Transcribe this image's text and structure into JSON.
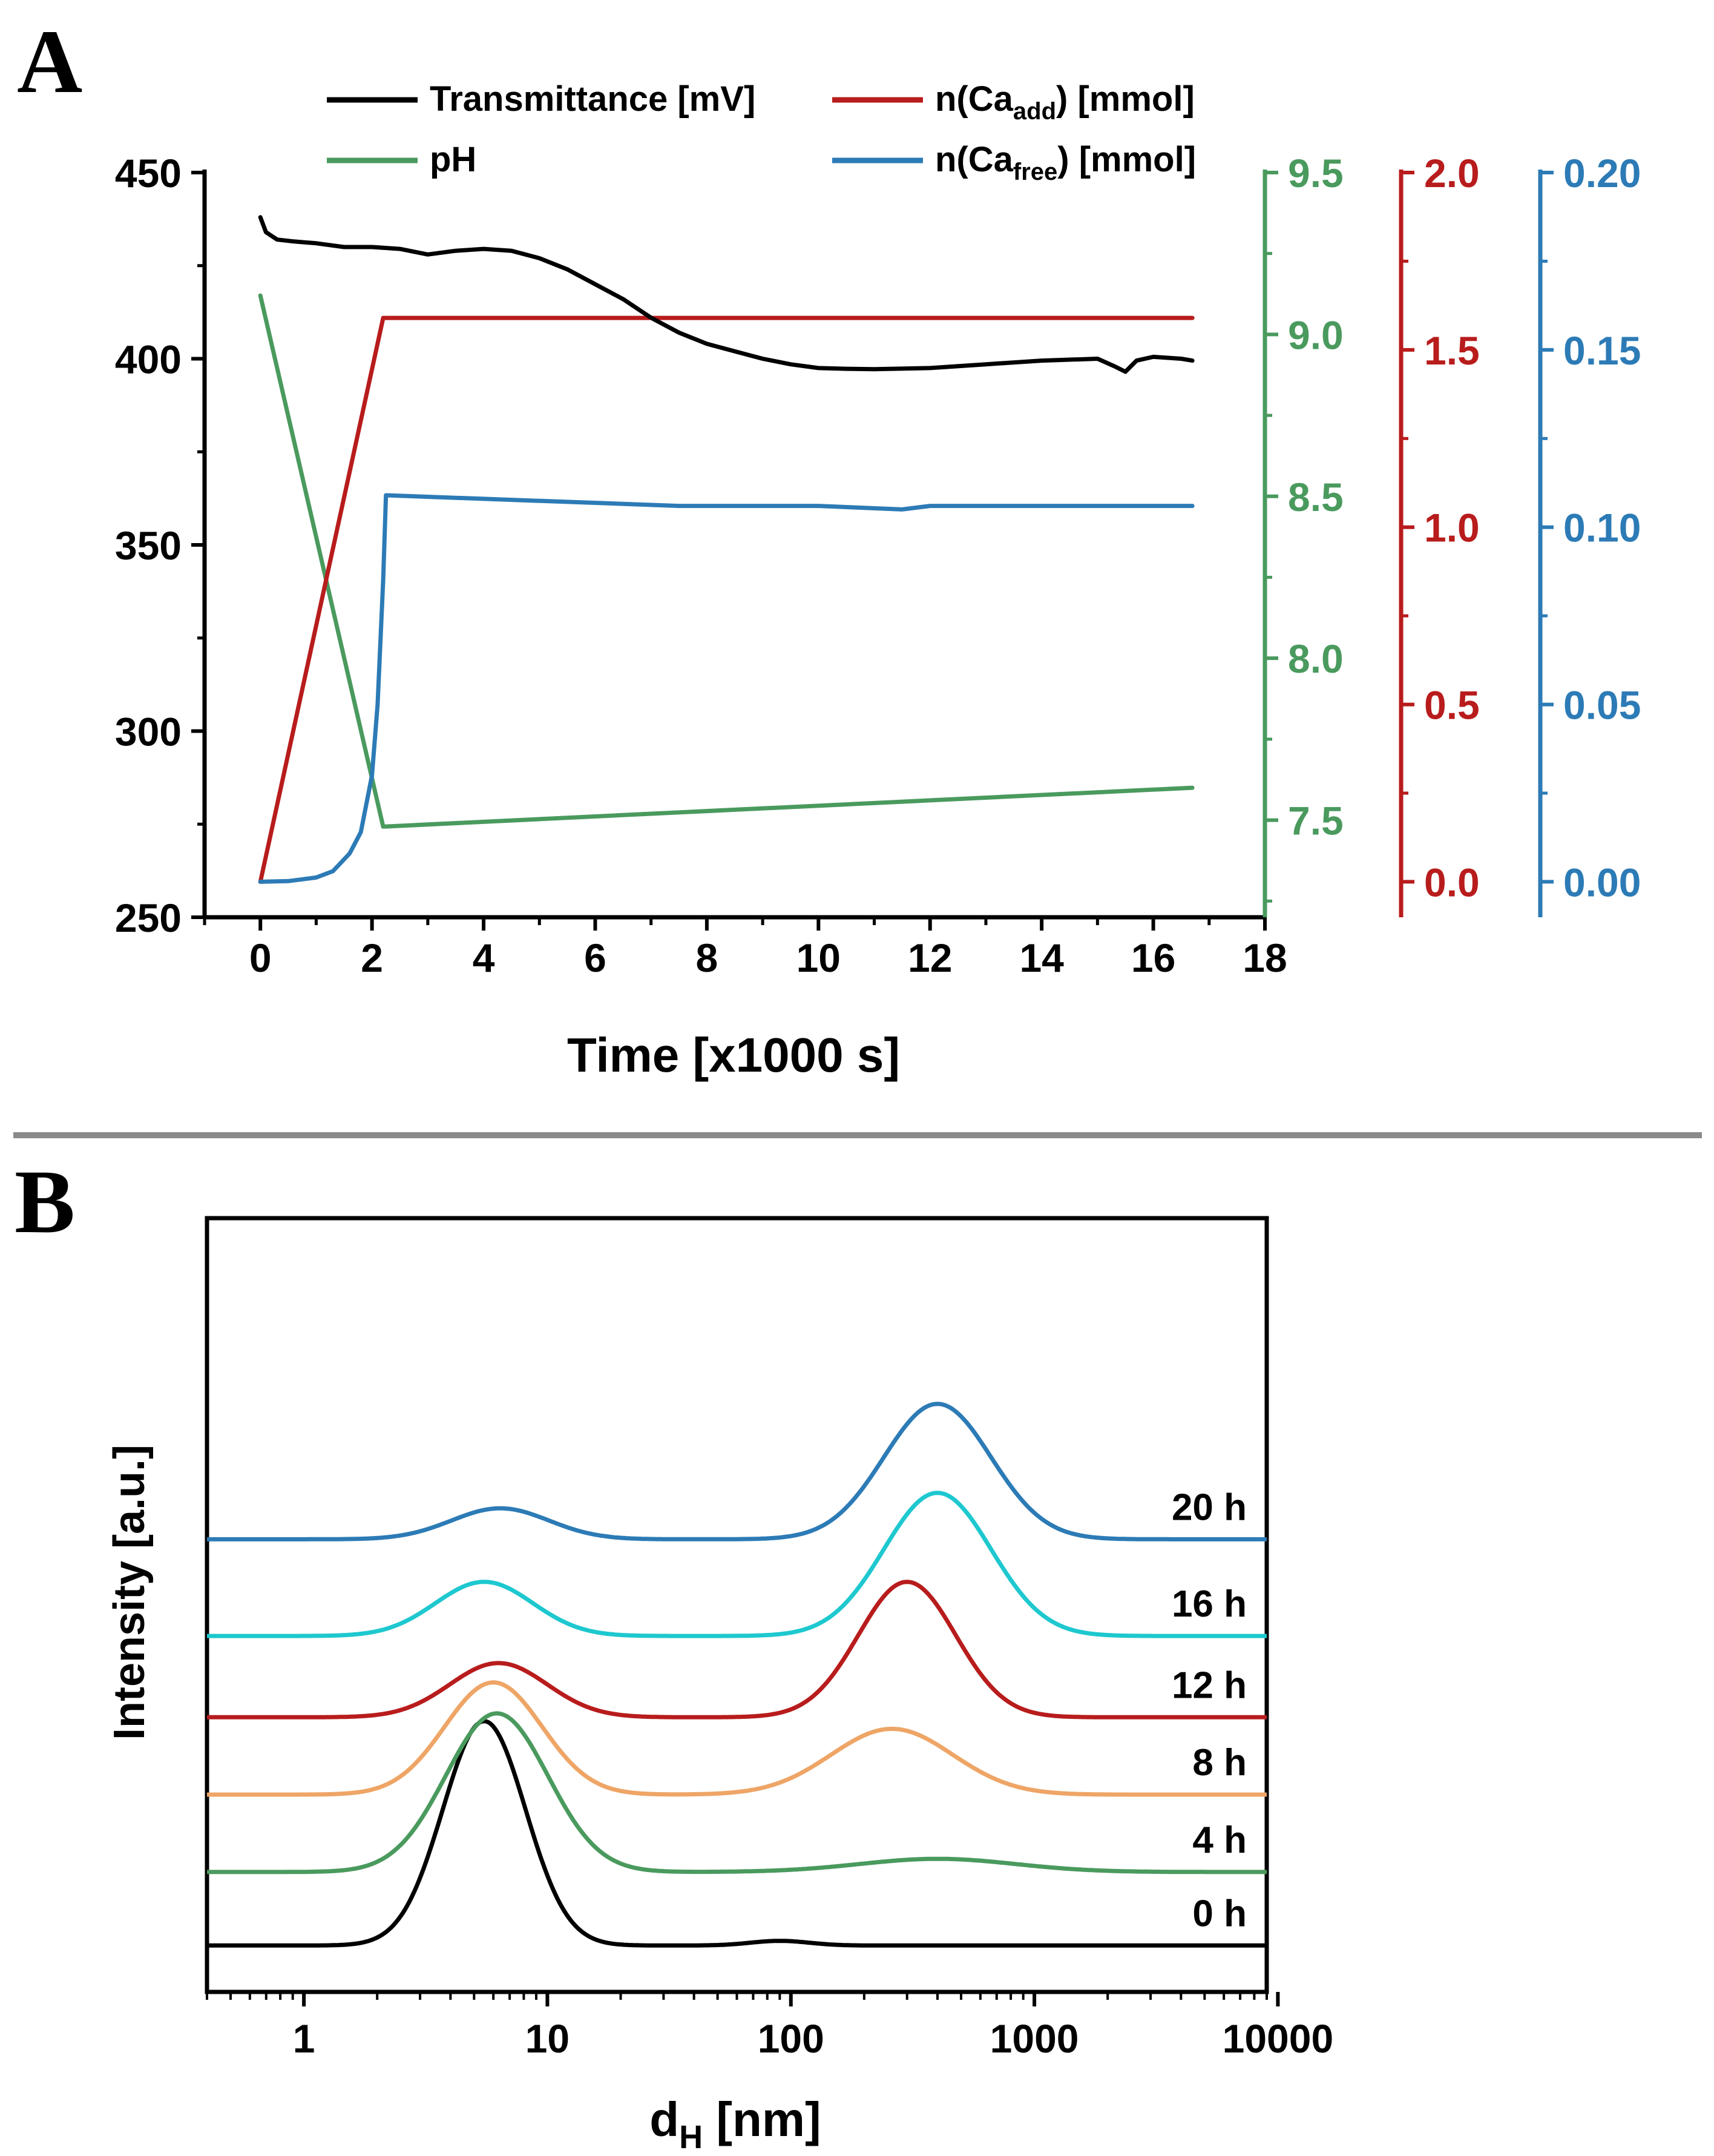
{
  "figure": {
    "panel_a_label": "A",
    "panel_b_label": "B"
  },
  "colors": {
    "transmittance": "#000000",
    "ph": "#4a9a5e",
    "ca_add": "#b81c1c",
    "ca_free": "#2c7bb6",
    "cyan": "#1ec8cf",
    "orange": "#eea566",
    "separator": "#8a8a8a"
  },
  "chart_data": [
    {
      "type": "line",
      "title": "",
      "xlabel": "Time [x1000 s]",
      "xlim": [
        -1,
        18
      ],
      "xticks": [
        "0",
        "2",
        "4",
        "6",
        "8",
        "10",
        "12",
        "14",
        "16",
        "18"
      ],
      "legend": {
        "placement": "top",
        "entries": [
          {
            "key": "transmittance",
            "text": "Transmittance [mV]"
          },
          {
            "key": "ca_add",
            "prefix": "n(Ca",
            "sub": "add",
            "suffix": ") [mmol]"
          },
          {
            "key": "ph",
            "text": "pH"
          },
          {
            "key": "ca_free",
            "prefix": "n(Ca",
            "sub": "free",
            "suffix": ") [mmol]"
          }
        ]
      },
      "axes": {
        "left": {
          "name": "Transmittance [mV]",
          "ylim": [
            250,
            450
          ],
          "ticks": [
            "250",
            "300",
            "350",
            "400",
            "450"
          ]
        },
        "ph": {
          "name": "pH",
          "ylim": [
            7.2,
            9.5
          ],
          "ticks": [
            "7.5",
            "8.0",
            "8.5",
            "9.0",
            "9.5"
          ]
        },
        "ca_add": {
          "name": "n(Ca_add) [mmol]",
          "ylim": [
            -0.1,
            2.0
          ],
          "ticks": [
            "0.0",
            "0.5",
            "1.0",
            "1.5",
            "2.0"
          ]
        },
        "ca_free": {
          "name": "n(Ca_free) [mmol]",
          "ylim": [
            -0.01,
            0.2
          ],
          "ticks": [
            "0.00",
            "0.05",
            "0.10",
            "0.15",
            "0.20"
          ]
        }
      },
      "series": [
        {
          "name": "Transmittance [mV]",
          "axis": "left",
          "color_key": "transmittance",
          "x": [
            0,
            0.1,
            0.3,
            0.6,
            1.0,
            1.5,
            2.0,
            2.5,
            3.0,
            3.5,
            4.0,
            4.5,
            5.0,
            5.5,
            6.0,
            6.5,
            7.0,
            7.5,
            8.0,
            8.5,
            9.0,
            9.5,
            10.0,
            10.5,
            11.0,
            12.0,
            13.0,
            14.0,
            15.0,
            15.3,
            15.5,
            15.7,
            16.0,
            16.5,
            16.7
          ],
          "y": [
            438,
            434,
            432,
            431.5,
            431,
            430,
            430,
            429.5,
            428,
            429,
            429.5,
            429,
            427,
            424,
            420,
            416,
            411,
            407,
            404,
            402,
            400,
            398.5,
            397.5,
            397.3,
            397.2,
            397.5,
            398.5,
            399.5,
            400,
            398,
            396.5,
            399.5,
            400.5,
            400,
            399.5
          ]
        },
        {
          "name": "pH",
          "axis": "ph",
          "color_key": "ph",
          "x": [
            0,
            2.2,
            16.7
          ],
          "y": [
            9.12,
            7.48,
            7.6
          ]
        },
        {
          "name": "n(Ca_add) [mmol]",
          "axis": "ca_add",
          "color_key": "ca_add",
          "x": [
            0,
            2.2,
            16.7
          ],
          "y": [
            0.0,
            1.59,
            1.59
          ]
        },
        {
          "name": "n(Ca_free) [mmol]",
          "axis": "ca_free",
          "color_key": "ca_free",
          "x": [
            0,
            0.5,
            1.0,
            1.3,
            1.6,
            1.8,
            2.0,
            2.1,
            2.2,
            2.25,
            4.0,
            7.5,
            10.0,
            11.5,
            12.0,
            16.7
          ],
          "y": [
            0.0,
            0.0002,
            0.0012,
            0.003,
            0.008,
            0.014,
            0.03,
            0.05,
            0.085,
            0.109,
            0.108,
            0.106,
            0.106,
            0.105,
            0.106,
            0.106
          ]
        }
      ]
    },
    {
      "type": "line",
      "title": "",
      "xlabel_main": "d",
      "xlabel_sub": "H",
      "xlabel_unit": " [nm]",
      "ylabel": "Intensity [a.u.]",
      "xscale": "log",
      "xlim": [
        0.4,
        9000
      ],
      "xticks": [
        "1",
        "10",
        "100",
        "1000",
        "10000"
      ],
      "ylim": [
        0,
        1
      ],
      "series": [
        {
          "name": "0 h",
          "color_key": "transmittance",
          "baseline": 0.06,
          "peaks": [
            {
              "center": 5.5,
              "height": 0.29,
              "width": 0.17
            },
            {
              "center": 90,
              "height": 0.006,
              "width": 0.12
            }
          ]
        },
        {
          "name": "4 h",
          "color_key": "ph",
          "baseline": 0.155,
          "peaks": [
            {
              "center": 6.2,
              "height": 0.205,
              "width": 0.21
            },
            {
              "center": 400,
              "height": 0.017,
              "width": 0.32
            }
          ]
        },
        {
          "name": "8 h",
          "color_key": "orange",
          "baseline": 0.255,
          "peaks": [
            {
              "center": 6.0,
              "height": 0.145,
              "width": 0.2
            },
            {
              "center": 260,
              "height": 0.085,
              "width": 0.25
            }
          ]
        },
        {
          "name": "12 h",
          "color_key": "ca_add",
          "baseline": 0.355,
          "peaks": [
            {
              "center": 6.3,
              "height": 0.07,
              "width": 0.2
            },
            {
              "center": 300,
              "height": 0.175,
              "width": 0.2
            }
          ]
        },
        {
          "name": "16 h",
          "color_key": "cyan",
          "baseline": 0.46,
          "peaks": [
            {
              "center": 5.5,
              "height": 0.07,
              "width": 0.2
            },
            {
              "center": 400,
              "height": 0.185,
              "width": 0.22
            }
          ]
        },
        {
          "name": "20 h",
          "color_key": "ca_free",
          "baseline": 0.585,
          "peaks": [
            {
              "center": 6.4,
              "height": 0.04,
              "width": 0.2
            },
            {
              "center": 400,
              "height": 0.175,
              "width": 0.22
            }
          ]
        }
      ]
    }
  ]
}
